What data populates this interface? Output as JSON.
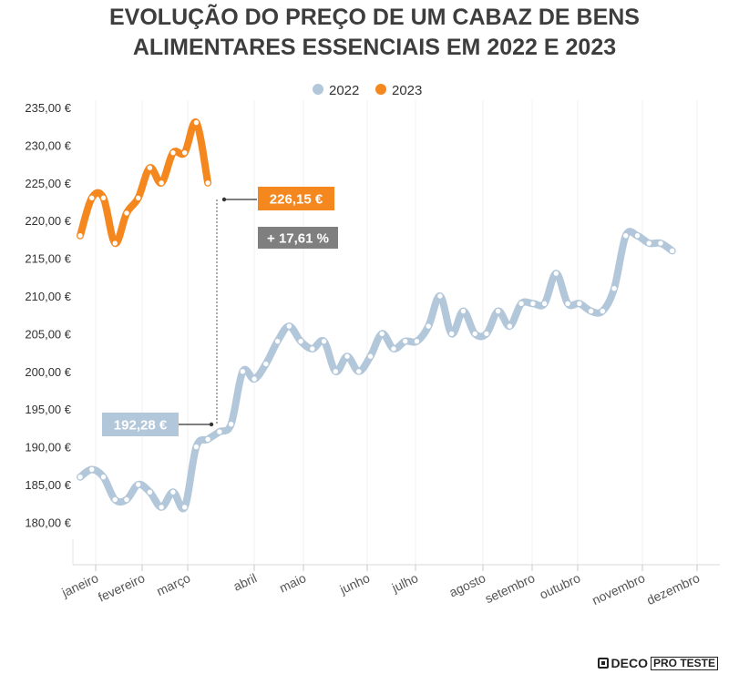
{
  "chart_data": {
    "type": "line",
    "title_lines": [
      "EVOLUÇÃO DO PREÇO DE UM CABAZ DE BENS",
      "ALIMENTARES ESSENCIAIS EM 2022 E 2023"
    ],
    "legend": {
      "placement": "top-center"
    },
    "months": [
      "janeiro",
      "fevereiro",
      "março",
      "abril",
      "maio",
      "junho",
      "julho",
      "agosto",
      "setembro",
      "outubro",
      "novembro",
      "dezembro"
    ],
    "y_ticks": [
      "180,00 €",
      "185,00 €",
      "190,00 €",
      "195,00 €",
      "200,00 €",
      "205,00 €",
      "210,00 €",
      "215,00 €",
      "220,00 €",
      "225,00 €",
      "230,00 €",
      "235,00 €"
    ],
    "ylim": [
      175,
      237
    ],
    "grid": "vertical",
    "series": [
      {
        "name": "2022",
        "color": "#b3c7da",
        "values": [
          186,
          187,
          186,
          183,
          183,
          185,
          184,
          182,
          184,
          182,
          190,
          191,
          192,
          193,
          200,
          199,
          201,
          204,
          206,
          204,
          203,
          204,
          200,
          202,
          200,
          202,
          205,
          203,
          204,
          204,
          206,
          210,
          205,
          208,
          205,
          205,
          208,
          206,
          209,
          209,
          209,
          213,
          209,
          209,
          208,
          208,
          211,
          218,
          218,
          217,
          217,
          216
        ]
      },
      {
        "name": "2023",
        "color": "#f5871f",
        "values": [
          218,
          223,
          223,
          217,
          221,
          223,
          227,
          225,
          229,
          229,
          233,
          225
        ]
      }
    ],
    "annotations": [
      {
        "series": "2023",
        "label": "226,15 €",
        "color": "#f5871f"
      },
      {
        "series": "diff",
        "label": "+ 17,61 %",
        "color": "#7f7f7f"
      },
      {
        "series": "2022",
        "label": "192,28 €",
        "color": "#b3c7da"
      }
    ]
  },
  "brand": {
    "deco": "DECO",
    "pro_teste": "PRO TESTE"
  }
}
